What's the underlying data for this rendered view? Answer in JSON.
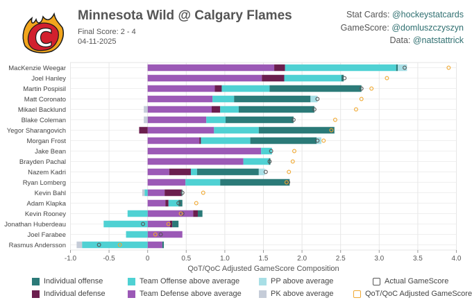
{
  "header": {
    "title": "Minnesota Wild @ Calgary Flames",
    "score": "Final Score: 2 - 4",
    "date": "04-11-2025",
    "logo_letter": "C",
    "credits": [
      {
        "label": "Stat Cards: ",
        "handle": "@hockeystatcards"
      },
      {
        "label": "GameScore: ",
        "handle": "@domluszczyszyn"
      },
      {
        "label": "Data: ",
        "handle": "@natstattrick"
      }
    ]
  },
  "colors": {
    "ind_off": "#2b7a78",
    "ind_def": "#6b1e4e",
    "team_off": "#4fd1d3",
    "team_def": "#9b59b6",
    "pp": "#a8dfe6",
    "pk": "#c5ccd8",
    "actual": "#555555",
    "adjusted": "#f0a830",
    "grid": "#e6e6e6"
  },
  "chart_data": {
    "type": "bar",
    "orientation": "horizontal-stacked",
    "xlabel": "QoT/QoC Adjusted GameScore Composition",
    "xlim": [
      -1.0,
      4.0
    ],
    "xticks": [
      "-1.0",
      "-0.5",
      "0",
      "0.5",
      "1.0",
      "1.5",
      "2.0",
      "2.5",
      "3.0",
      "3.5",
      "4.0"
    ],
    "series_names": [
      "Individual offense",
      "Individual defense",
      "Team Offense above average",
      "Team Defense above average",
      "PP above average",
      "PK above average",
      "Actual GameScore",
      "QoT/QoC Adjusted GameScore"
    ],
    "players": [
      {
        "name": "MacKenzie Weegar",
        "team_def": 1.64,
        "ind_def": 0.14,
        "team_off": 1.44,
        "ind_off": 0.02,
        "pp": 0.12,
        "pk": 0.0,
        "actual": 3.33,
        "adjusted": 3.9
      },
      {
        "name": "Joel Hanley",
        "team_def": 1.48,
        "ind_def": 0.29,
        "team_off": 0.74,
        "ind_off": 0.03,
        "pp": 0.0,
        "pk": 0.0,
        "actual": 2.55,
        "adjusted": 3.1
      },
      {
        "name": "Martin Pospisil",
        "team_def": 0.87,
        "ind_def": 0.09,
        "team_off": 0.62,
        "ind_off": 1.19,
        "pp": 0.0,
        "pk": 0.0,
        "actual": 2.77,
        "adjusted": 2.9
      },
      {
        "name": "Matt Coronato",
        "team_def": 0.84,
        "ind_def": 0.0,
        "team_off": 0.28,
        "ind_off": 0.99,
        "pp": 0.09,
        "pk": 0.0,
        "actual": 2.2,
        "adjusted": 2.77
      },
      {
        "name": "Mikael Backlund",
        "team_def": 0.83,
        "ind_def": 0.11,
        "team_off": 0.24,
        "ind_off": 0.98,
        "pp": 0.0,
        "pk": -0.05,
        "actual": 2.16,
        "adjusted": 2.7
      },
      {
        "name": "Blake Coleman",
        "team_def": 0.76,
        "ind_def": 0.0,
        "team_off": 0.25,
        "ind_off": 0.88,
        "pp": 0.0,
        "pk": -0.05,
        "actual": 1.89,
        "adjusted": 2.43
      },
      {
        "name": "Yegor Sharangovich",
        "team_def": 0.86,
        "ind_def": -0.11,
        "team_off": 0.58,
        "ind_off": 0.98,
        "pp": 0.0,
        "pk": 0.0,
        "actual": 2.38,
        "adjusted": 2.38
      },
      {
        "name": "Morgan Frost",
        "team_def": 0.67,
        "ind_def": 0.02,
        "team_off": 0.64,
        "ind_off": 0.86,
        "pp": 0.06,
        "pk": 0.0,
        "actual": 2.2,
        "adjusted": 2.28
      },
      {
        "name": "Jake Bean",
        "team_def": 1.47,
        "ind_def": 0.0,
        "team_off": 0.14,
        "ind_off": 0.0,
        "pp": 0.0,
        "pk": 0.0,
        "actual": 1.6,
        "adjusted": 1.9
      },
      {
        "name": "Brayden Pachal",
        "team_def": 1.24,
        "ind_def": 0.0,
        "team_off": 0.33,
        "ind_off": 0.02,
        "pp": 0.0,
        "pk": 0.0,
        "actual": 1.58,
        "adjusted": 1.88
      },
      {
        "name": "Nazem Kadri",
        "team_def": 0.28,
        "ind_def": 0.28,
        "team_off": 0.08,
        "ind_off": 0.8,
        "pp": 0.08,
        "pk": 0.0,
        "actual": 1.53,
        "adjusted": 1.83
      },
      {
        "name": "Ryan Lomberg",
        "team_def": 0.49,
        "ind_def": 0.0,
        "team_off": 0.45,
        "ind_off": 0.9,
        "pp": 0.0,
        "pk": 0.0,
        "actual": 1.82,
        "adjusted": 1.8
      },
      {
        "name": "Kevin Bahl",
        "team_def": 0.22,
        "ind_def": 0.22,
        "team_off": -0.04,
        "ind_off": 0.01,
        "pp": 0.0,
        "pk": -0.03,
        "actual": 0.45,
        "adjusted": 0.72
      },
      {
        "name": "Adam Klapka",
        "team_def": 0.23,
        "ind_def": 0.04,
        "team_off": 0.13,
        "ind_off": 0.05,
        "pp": 0.0,
        "pk": 0.0,
        "actual": 0.4,
        "adjusted": 0.63
      },
      {
        "name": "Kevin Rooney",
        "team_def": 0.59,
        "ind_def": 0.06,
        "team_off": -0.26,
        "ind_off": 0.06,
        "pp": 0.0,
        "pk": 0.0,
        "actual": 0.45,
        "adjusted": 0.43
      },
      {
        "name": "Jonathan Huberdeau",
        "team_def": 0.29,
        "ind_def": 0.03,
        "team_off": -0.57,
        "ind_off": 0.08,
        "pp": 0.0,
        "pk": 0.0,
        "actual": -0.06,
        "adjusted": 0.27
      },
      {
        "name": "Joel Farabee",
        "team_def": 0.45,
        "ind_def": 0.0,
        "team_off": -0.28,
        "ind_off": 0.0,
        "pp": 0.0,
        "pk": 0.0,
        "actual": 0.17,
        "adjusted": 0.1
      },
      {
        "name": "Rasmus Andersson",
        "team_def": 0.19,
        "ind_def": 0.0,
        "team_off": -0.85,
        "ind_off": 0.02,
        "pp": 0.0,
        "pk": -0.07,
        "actual": -0.63,
        "adjusted": -0.36
      }
    ]
  }
}
